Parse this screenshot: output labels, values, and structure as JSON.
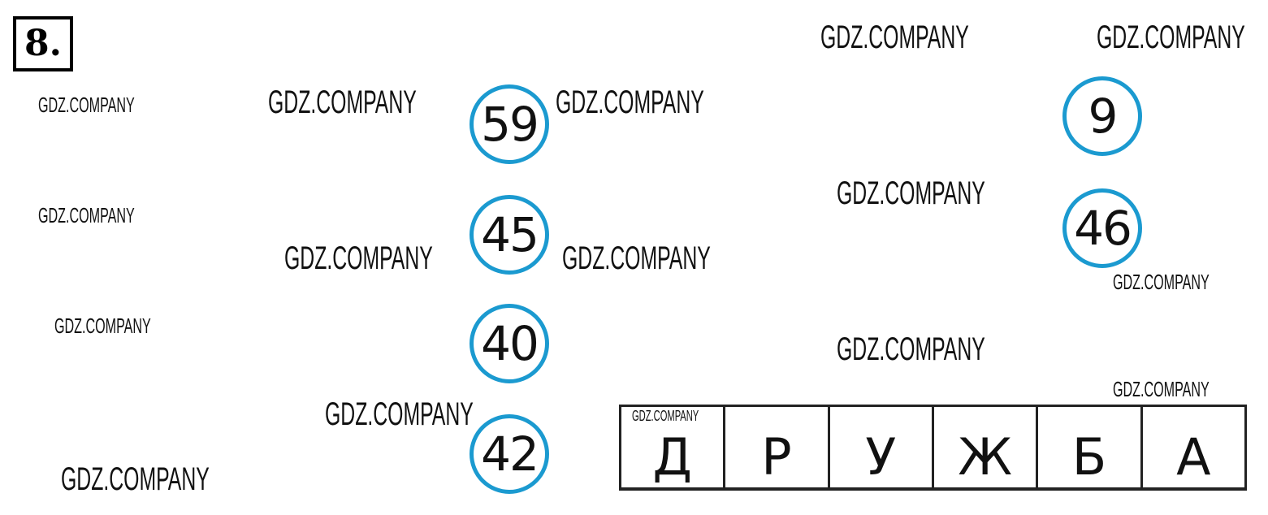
{
  "exercise_number": "8.",
  "watermark": "GDZ.COMPANY",
  "circles_left": [
    "59",
    "45",
    "40",
    "42"
  ],
  "circles_right": [
    "9",
    "46"
  ],
  "word_letters": [
    "Д",
    "Р",
    "У",
    "Ж",
    "Б",
    "А"
  ],
  "colors": {
    "circle": "#1b9ad0"
  }
}
